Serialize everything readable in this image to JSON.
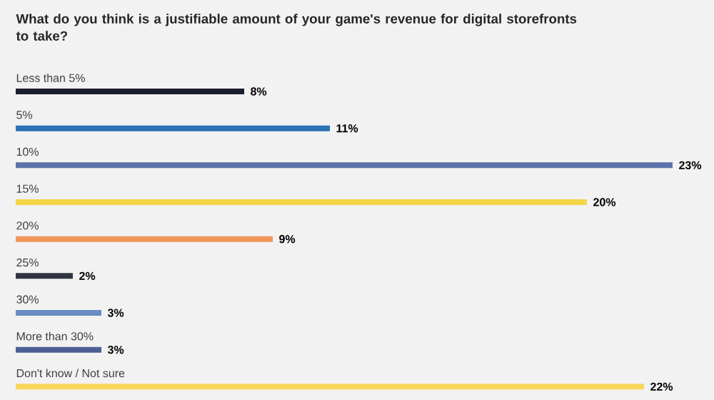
{
  "chart_data": {
    "type": "bar",
    "orientation": "horizontal",
    "title": "What do you think is a justifiable amount of your game's revenue for digital storefronts to take?",
    "categories": [
      "Less than 5%",
      "5%",
      "10%",
      "15%",
      "20%",
      "25%",
      "30%",
      "More than 30%",
      "Don't know / Not sure"
    ],
    "values": [
      8,
      11,
      23,
      20,
      9,
      2,
      3,
      3,
      22
    ],
    "value_labels": [
      "8%",
      "11%",
      "23%",
      "20%",
      "9%",
      "2%",
      "3%",
      "3%",
      "22%"
    ],
    "colors": [
      "#1a1f2e",
      "#2a72b5",
      "#5b73a8",
      "#f5d547",
      "#f0965a",
      "#2f3440",
      "#6b8cc4",
      "#4d5f94",
      "#f7d65a"
    ]
  }
}
